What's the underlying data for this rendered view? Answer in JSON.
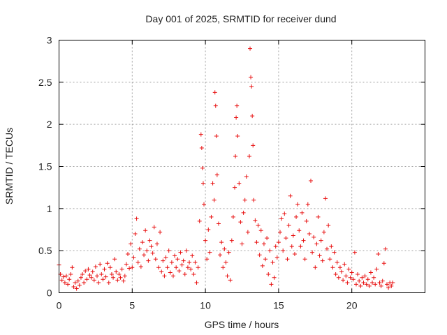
{
  "chart_data": {
    "type": "scatter",
    "title": "Day 001 of 2025, SRMTID for receiver dund",
    "xlabel": "GPS time / hours",
    "ylabel": "SRMTID / TECUs",
    "xlim": [
      0,
      25
    ],
    "ylim": [
      0,
      3
    ],
    "xticks": [
      0,
      5,
      10,
      15,
      20
    ],
    "xtick_labels": [
      "0",
      "5",
      "10",
      "15",
      "20"
    ],
    "yticks": [
      0,
      0.5,
      1,
      1.5,
      2,
      2.5,
      3
    ],
    "ytick_labels": [
      "0",
      "0.5",
      "1",
      "1.5",
      "2",
      "2.5",
      "3"
    ],
    "grid": true,
    "marker": "+",
    "color": "#e81010",
    "series": [
      {
        "name": "SRMTID",
        "points": [
          [
            0.0,
            0.33
          ],
          [
            0.1,
            0.22
          ],
          [
            0.2,
            0.15
          ],
          [
            0.3,
            0.19
          ],
          [
            0.4,
            0.12
          ],
          [
            0.5,
            0.2
          ],
          [
            0.6,
            0.1
          ],
          [
            0.7,
            0.16
          ],
          [
            0.8,
            0.22
          ],
          [
            0.9,
            0.3
          ],
          [
            1.0,
            0.07
          ],
          [
            1.1,
            0.12
          ],
          [
            1.2,
            0.05
          ],
          [
            1.3,
            0.14
          ],
          [
            1.4,
            0.09
          ],
          [
            1.5,
            0.18
          ],
          [
            1.6,
            0.22
          ],
          [
            1.7,
            0.12
          ],
          [
            1.8,
            0.26
          ],
          [
            1.9,
            0.16
          ],
          [
            2.0,
            0.28
          ],
          [
            2.1,
            0.21
          ],
          [
            2.2,
            0.18
          ],
          [
            2.3,
            0.25
          ],
          [
            2.4,
            0.15
          ],
          [
            2.5,
            0.31
          ],
          [
            2.6,
            0.2
          ],
          [
            2.7,
            0.12
          ],
          [
            2.8,
            0.34
          ],
          [
            2.9,
            0.22
          ],
          [
            3.0,
            0.16
          ],
          [
            3.1,
            0.28
          ],
          [
            3.2,
            0.19
          ],
          [
            3.3,
            0.35
          ],
          [
            3.4,
            0.12
          ],
          [
            3.5,
            0.3
          ],
          [
            3.6,
            0.22
          ],
          [
            3.7,
            0.18
          ],
          [
            3.8,
            0.4
          ],
          [
            3.9,
            0.25
          ],
          [
            4.0,
            0.15
          ],
          [
            4.1,
            0.22
          ],
          [
            4.2,
            0.18
          ],
          [
            4.3,
            0.28
          ],
          [
            4.4,
            0.14
          ],
          [
            4.5,
            0.2
          ],
          [
            4.6,
            0.34
          ],
          [
            4.7,
            0.46
          ],
          [
            4.8,
            0.29
          ],
          [
            4.9,
            0.58
          ],
          [
            5.0,
            0.3
          ],
          [
            5.1,
            0.42
          ],
          [
            5.2,
            0.7
          ],
          [
            5.3,
            0.88
          ],
          [
            5.4,
            0.36
          ],
          [
            5.5,
            0.52
          ],
          [
            5.6,
            0.31
          ],
          [
            5.7,
            0.6
          ],
          [
            5.8,
            0.45
          ],
          [
            5.9,
            0.74
          ],
          [
            6.0,
            0.5
          ],
          [
            6.1,
            0.38
          ],
          [
            6.2,
            0.62
          ],
          [
            6.3,
            0.55
          ],
          [
            6.4,
            0.47
          ],
          [
            6.5,
            0.78
          ],
          [
            6.6,
            0.4
          ],
          [
            6.7,
            0.58
          ],
          [
            6.8,
            0.3
          ],
          [
            6.9,
            0.72
          ],
          [
            7.0,
            0.25
          ],
          [
            7.1,
            0.38
          ],
          [
            7.2,
            0.2
          ],
          [
            7.3,
            0.42
          ],
          [
            7.4,
            0.3
          ],
          [
            7.5,
            0.5
          ],
          [
            7.6,
            0.24
          ],
          [
            7.7,
            0.36
          ],
          [
            7.8,
            0.2
          ],
          [
            7.9,
            0.44
          ],
          [
            8.0,
            0.3
          ],
          [
            8.1,
            0.4
          ],
          [
            8.2,
            0.26
          ],
          [
            8.3,
            0.48
          ],
          [
            8.4,
            0.33
          ],
          [
            8.5,
            0.38
          ],
          [
            8.6,
            0.22
          ],
          [
            8.7,
            0.5
          ],
          [
            8.8,
            0.3
          ],
          [
            8.9,
            0.36
          ],
          [
            9.0,
            0.28
          ],
          [
            9.1,
            0.44
          ],
          [
            9.2,
            0.22
          ],
          [
            9.3,
            0.36
          ],
          [
            9.4,
            0.12
          ],
          [
            9.5,
            0.3
          ],
          [
            9.6,
            0.85
          ],
          [
            9.7,
            1.88
          ],
          [
            9.75,
            1.72
          ],
          [
            9.8,
            1.48
          ],
          [
            9.85,
            1.3
          ],
          [
            9.9,
            1.05
          ],
          [
            10.0,
            0.62
          ],
          [
            10.1,
            0.4
          ],
          [
            10.2,
            0.75
          ],
          [
            10.3,
            0.48
          ],
          [
            10.4,
            0.9
          ],
          [
            10.5,
            1.3
          ],
          [
            10.6,
            1.1
          ],
          [
            10.65,
            2.38
          ],
          [
            10.7,
            2.22
          ],
          [
            10.75,
            1.86
          ],
          [
            10.8,
            1.4
          ],
          [
            10.9,
            0.82
          ],
          [
            11.0,
            0.45
          ],
          [
            11.1,
            0.6
          ],
          [
            11.2,
            0.3
          ],
          [
            11.3,
            0.52
          ],
          [
            11.4,
            0.36
          ],
          [
            11.5,
            0.2
          ],
          [
            11.6,
            0.48
          ],
          [
            11.7,
            0.15
          ],
          [
            11.8,
            0.62
          ],
          [
            11.9,
            0.9
          ],
          [
            12.0,
            1.25
          ],
          [
            12.05,
            1.62
          ],
          [
            12.1,
            2.08
          ],
          [
            12.15,
            2.22
          ],
          [
            12.2,
            1.86
          ],
          [
            12.3,
            1.3
          ],
          [
            12.4,
            0.84
          ],
          [
            12.5,
            0.58
          ],
          [
            12.6,
            0.95
          ],
          [
            12.7,
            1.1
          ],
          [
            12.8,
            1.38
          ],
          [
            12.9,
            0.72
          ],
          [
            13.0,
            1.62
          ],
          [
            13.05,
            2.9
          ],
          [
            13.1,
            2.56
          ],
          [
            13.15,
            2.45
          ],
          [
            13.2,
            2.1
          ],
          [
            13.25,
            1.75
          ],
          [
            13.3,
            1.1
          ],
          [
            13.4,
            0.86
          ],
          [
            13.5,
            0.6
          ],
          [
            13.6,
            0.8
          ],
          [
            13.7,
            0.45
          ],
          [
            13.8,
            0.74
          ],
          [
            13.9,
            0.32
          ],
          [
            14.0,
            0.58
          ],
          [
            14.1,
            0.4
          ],
          [
            14.2,
            0.65
          ],
          [
            14.3,
            0.22
          ],
          [
            14.4,
            0.5
          ],
          [
            14.5,
            0.1
          ],
          [
            14.6,
            0.36
          ],
          [
            14.7,
            0.18
          ],
          [
            14.8,
            0.55
          ],
          [
            14.9,
            0.42
          ],
          [
            15.0,
            0.6
          ],
          [
            15.1,
            0.72
          ],
          [
            15.2,
            0.88
          ],
          [
            15.3,
            0.5
          ],
          [
            15.4,
            0.94
          ],
          [
            15.5,
            0.65
          ],
          [
            15.6,
            0.4
          ],
          [
            15.7,
            0.8
          ],
          [
            15.8,
            1.15
          ],
          [
            15.9,
            0.55
          ],
          [
            16.0,
            0.68
          ],
          [
            16.1,
            0.46
          ],
          [
            16.2,
            0.9
          ],
          [
            16.3,
            1.05
          ],
          [
            16.4,
            0.74
          ],
          [
            16.5,
            0.55
          ],
          [
            16.6,
            0.95
          ],
          [
            16.7,
            0.62
          ],
          [
            16.8,
            0.4
          ],
          [
            16.9,
            0.85
          ],
          [
            17.0,
            1.05
          ],
          [
            17.1,
            0.7
          ],
          [
            17.2,
            1.33
          ],
          [
            17.3,
            0.48
          ],
          [
            17.4,
            0.66
          ],
          [
            17.5,
            0.3
          ],
          [
            17.6,
            0.58
          ],
          [
            17.7,
            0.9
          ],
          [
            17.8,
            0.44
          ],
          [
            17.9,
            0.62
          ],
          [
            18.0,
            0.38
          ],
          [
            18.1,
            0.72
          ],
          [
            18.2,
            1.12
          ],
          [
            18.3,
            0.52
          ],
          [
            18.4,
            0.8
          ],
          [
            18.5,
            0.4
          ],
          [
            18.6,
            0.55
          ],
          [
            18.7,
            0.3
          ],
          [
            18.8,
            0.48
          ],
          [
            18.9,
            0.22
          ],
          [
            19.0,
            0.36
          ],
          [
            19.1,
            0.18
          ],
          [
            19.2,
            0.3
          ],
          [
            19.3,
            0.25
          ],
          [
            19.4,
            0.15
          ],
          [
            19.5,
            0.34
          ],
          [
            19.6,
            0.2
          ],
          [
            19.7,
            0.12
          ],
          [
            19.8,
            0.28
          ],
          [
            19.9,
            0.18
          ],
          [
            20.0,
            0.24
          ],
          [
            20.1,
            0.16
          ],
          [
            20.2,
            0.48
          ],
          [
            20.3,
            0.1
          ],
          [
            20.4,
            0.22
          ],
          [
            20.5,
            0.14
          ],
          [
            20.6,
            0.08
          ],
          [
            20.7,
            0.18
          ],
          [
            20.8,
            0.12
          ],
          [
            20.9,
            0.2
          ],
          [
            21.0,
            0.1
          ],
          [
            21.1,
            0.16
          ],
          [
            21.2,
            0.08
          ],
          [
            21.3,
            0.24
          ],
          [
            21.4,
            0.12
          ],
          [
            21.5,
            0.18
          ],
          [
            21.6,
            0.1
          ],
          [
            21.7,
            0.28
          ],
          [
            21.8,
            0.46
          ],
          [
            21.9,
            0.12
          ],
          [
            22.0,
            0.08
          ],
          [
            22.1,
            0.14
          ],
          [
            22.2,
            0.35
          ],
          [
            22.3,
            0.52
          ],
          [
            22.4,
            0.1
          ],
          [
            22.5,
            0.06
          ],
          [
            22.6,
            0.12
          ],
          [
            22.7,
            0.08
          ],
          [
            22.8,
            0.12
          ]
        ]
      }
    ]
  }
}
